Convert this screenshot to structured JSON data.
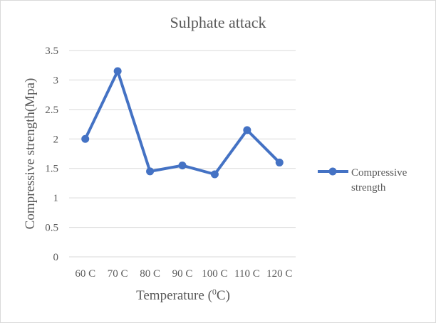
{
  "chart_data": {
    "type": "line",
    "title": "Sulphate attack",
    "xlabel_main": "Temperature (",
    "xlabel_sup": "0",
    "xlabel_tail": "C)",
    "ylabel": "Compressive strength(Mpa)",
    "categories": [
      "60 C",
      "70 C",
      "80 C",
      "90 C",
      "100 C",
      "110 C",
      "120 C"
    ],
    "series": [
      {
        "name": "Compressive strength",
        "legend_line1": "Compressive",
        "legend_line2": "strength",
        "values": [
          2.0,
          3.15,
          1.45,
          1.55,
          1.4,
          2.15,
          1.6
        ],
        "color": "#4472c4"
      }
    ],
    "ylim": [
      0,
      3.5
    ],
    "yticks": [
      "0",
      "0.5",
      "1",
      "1.5",
      "2",
      "2.5",
      "3",
      "3.5"
    ],
    "grid": true,
    "legend": "right",
    "gridColor": "#d9d9d9",
    "textColor": "#595959"
  }
}
